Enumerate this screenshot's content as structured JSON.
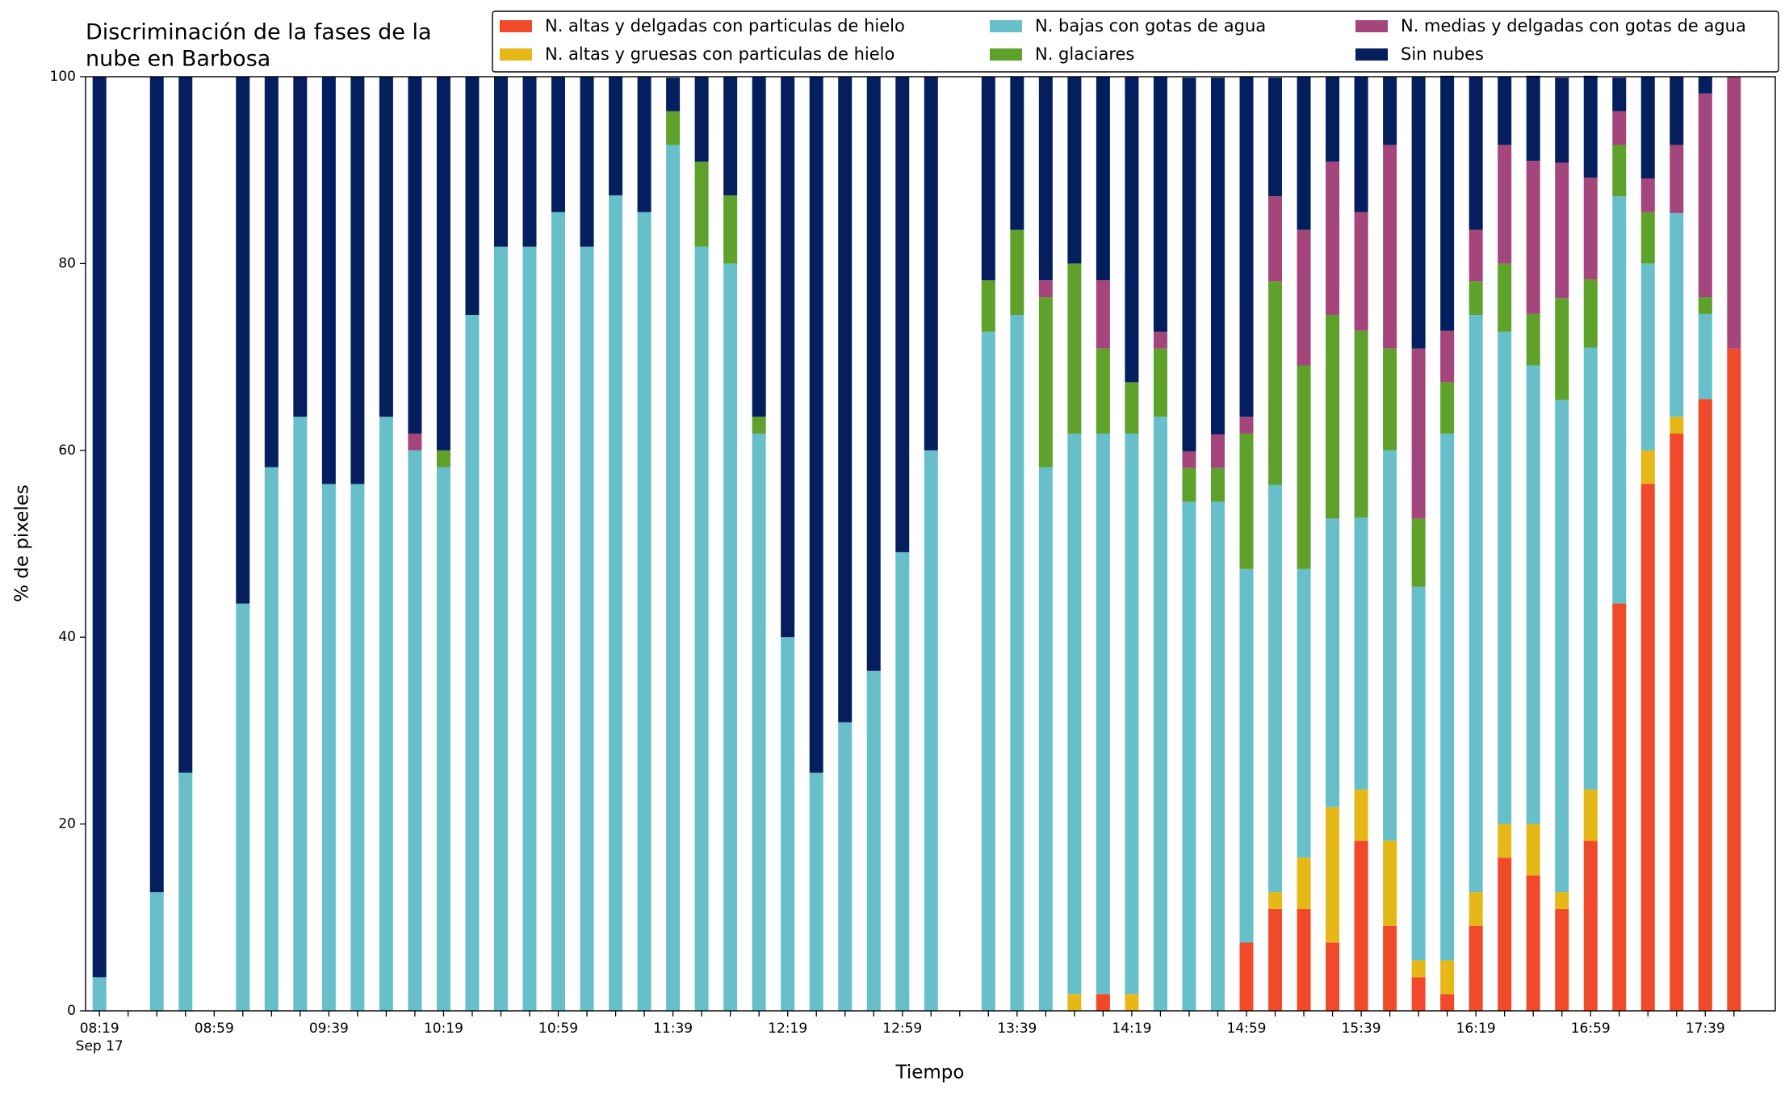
{
  "chart_data": {
    "type": "stacked_bar",
    "title": [
      "Discriminación de la fases de la",
      "nube en Barbosa"
    ],
    "xlabel": "Tiempo",
    "ylabel": "% de pixeles",
    "x_date_label": "Sep 17",
    "categories": [
      "08:19",
      null,
      null,
      null,
      "08:59",
      null,
      null,
      null,
      "09:39",
      null,
      null,
      null,
      "10:19",
      null,
      null,
      null,
      "10:59",
      null,
      null,
      null,
      "11:39",
      null,
      null,
      null,
      "12:19",
      null,
      null,
      null,
      "12:59",
      null,
      null,
      null,
      "13:39",
      null,
      null,
      null,
      "14:19",
      null,
      null,
      null,
      "14:59",
      null,
      null,
      null,
      "15:39",
      null,
      null,
      null,
      "16:19",
      null,
      null,
      null,
      "16:59",
      null,
      null,
      null,
      "17:39",
      null
    ],
    "ylim": [
      0,
      100
    ],
    "yticks": [
      0,
      20,
      40,
      60,
      80,
      100
    ],
    "legend": "top-right",
    "series": [
      {
        "name": "N. altas y delgadas con particulas de hielo",
        "color": "#f04a2a",
        "values": [
          0,
          null,
          0,
          0,
          null,
          0,
          0,
          0,
          0,
          0,
          0,
          0,
          0,
          0,
          0,
          0,
          0,
          0,
          0,
          0,
          0,
          0,
          0,
          0,
          0,
          0,
          0,
          0,
          0,
          0,
          null,
          0,
          0,
          0,
          0,
          1.8,
          0,
          0,
          0,
          0,
          7.3,
          10.9,
          10.9,
          7.3,
          18.2,
          9.1,
          3.6,
          1.8,
          9.1,
          16.4,
          14.5,
          10.9,
          18.2,
          43.6,
          56.4,
          61.8,
          65.5,
          70.9
        ]
      },
      {
        "name": "N. altas y gruesas con particulas de hielo",
        "color": "#e6b817",
        "values": [
          0,
          null,
          0,
          0,
          null,
          0,
          0,
          0,
          0,
          0,
          0,
          0,
          0,
          0,
          0,
          0,
          0,
          0,
          0,
          0,
          0,
          0,
          0,
          0,
          0,
          0,
          0,
          0,
          0,
          0,
          null,
          0,
          0,
          0,
          1.8,
          0,
          1.8,
          0,
          0,
          0,
          0,
          1.8,
          5.5,
          14.5,
          5.5,
          9.1,
          1.8,
          3.6,
          3.6,
          3.6,
          5.5,
          1.8,
          5.5,
          0,
          3.6,
          1.8,
          0,
          0
        ]
      },
      {
        "name": "N. bajas con gotas de agua",
        "color": "#67bfca",
        "values": [
          3.6,
          null,
          12.7,
          25.5,
          null,
          43.6,
          58.2,
          63.6,
          56.4,
          56.4,
          63.6,
          60,
          58.2,
          74.5,
          81.8,
          81.8,
          85.5,
          81.8,
          87.3,
          85.5,
          92.7,
          81.8,
          80,
          61.8,
          40,
          25.5,
          30.9,
          36.4,
          49.1,
          60,
          null,
          72.7,
          74.5,
          58.2,
          60,
          60,
          60,
          63.6,
          54.5,
          54.5,
          40,
          43.6,
          30.9,
          30.9,
          29.1,
          41.8,
          40,
          56.4,
          61.8,
          52.7,
          49.1,
          52.7,
          47.3,
          43.6,
          20,
          21.8,
          9.1,
          0
        ]
      },
      {
        "name": "N. glaciares",
        "color": "#5ea12b",
        "values": [
          0,
          null,
          0,
          0,
          null,
          0,
          0,
          0,
          0,
          0,
          0,
          0,
          1.8,
          0,
          0,
          0,
          0,
          0,
          0,
          0,
          3.6,
          9.1,
          7.3,
          1.8,
          0,
          0,
          0,
          0,
          0,
          0,
          null,
          5.5,
          9.1,
          18.2,
          18.2,
          9.1,
          5.5,
          7.3,
          3.6,
          3.6,
          14.5,
          21.8,
          21.8,
          21.8,
          20,
          10.9,
          7.3,
          5.5,
          3.6,
          7.3,
          5.5,
          10.9,
          7.3,
          5.5,
          5.5,
          0,
          1.8,
          0
        ]
      },
      {
        "name": "N. medias y delgadas con gotas de agua",
        "color": "#a4467c",
        "values": [
          0,
          null,
          0,
          0,
          null,
          0,
          0,
          0,
          0,
          0,
          0,
          1.8,
          0,
          0,
          0,
          0,
          0,
          0,
          0,
          0,
          0,
          0,
          0,
          0,
          0,
          0,
          0,
          0,
          0,
          0,
          null,
          0,
          0,
          1.8,
          0,
          7.3,
          0,
          1.8,
          1.8,
          3.6,
          1.8,
          9.1,
          14.5,
          16.4,
          12.7,
          21.8,
          18.2,
          5.5,
          5.5,
          12.7,
          16.4,
          14.5,
          10.9,
          3.6,
          3.6,
          7.3,
          21.8,
          29.1
        ]
      },
      {
        "name": "Sin nubes",
        "color": "#041e5e",
        "values": [
          96.4,
          null,
          87.3,
          74.5,
          null,
          56.4,
          41.8,
          36.4,
          43.6,
          43.6,
          36.4,
          38.2,
          40,
          25.5,
          18.2,
          18.2,
          14.5,
          18.2,
          12.7,
          14.5,
          3.6,
          9.1,
          12.7,
          36.4,
          60,
          74.5,
          69.1,
          63.6,
          50.9,
          40,
          null,
          21.8,
          16.4,
          21.8,
          20,
          21.8,
          32.7,
          27.3,
          40,
          38.2,
          36.4,
          12.7,
          16.4,
          9.1,
          14.5,
          7.3,
          29.1,
          27.3,
          16.4,
          7.3,
          9.1,
          9.1,
          10.9,
          3.6,
          10.9,
          7.3,
          1.8,
          0
        ]
      }
    ]
  }
}
